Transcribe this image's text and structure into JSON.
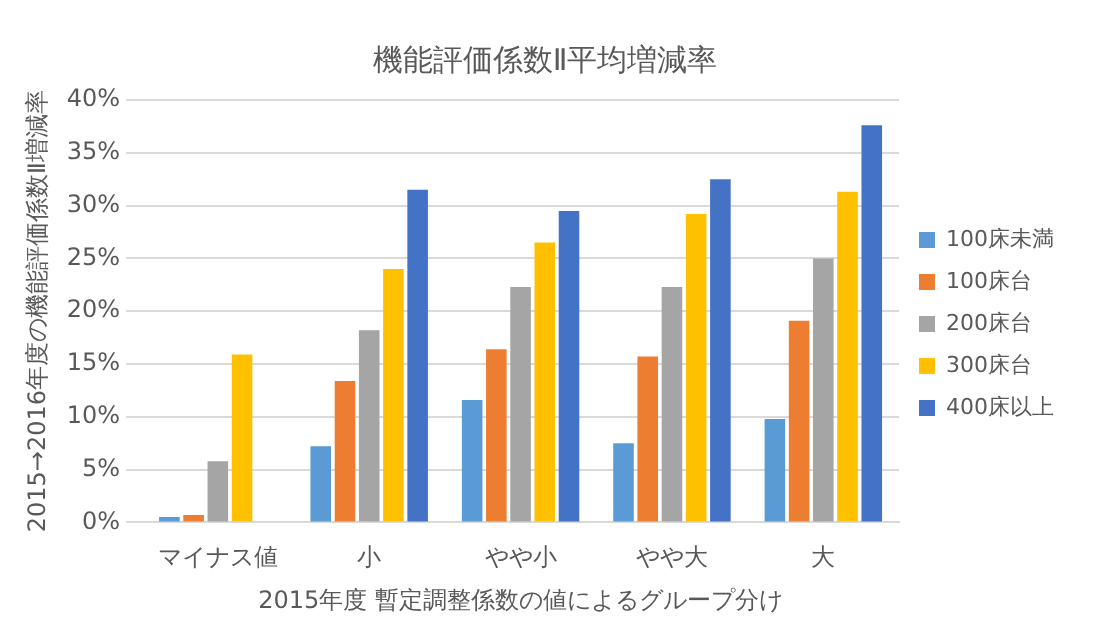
{
  "chart_data": {
    "type": "bar",
    "title": "機能評価係数Ⅱ平均増減率",
    "xlabel": "2015年度 暫定調整係数の値によるグループ分け",
    "ylabel": "2015→2016年度の機能評価係数Ⅱ増減率",
    "categories": [
      "マイナス値",
      "小",
      "やや小",
      "やや大",
      "大"
    ],
    "series": [
      {
        "name": "100床未満",
        "color": "#5b9bd5",
        "values": [
          0.5,
          7.2,
          11.6,
          7.5,
          9.8
        ]
      },
      {
        "name": "100床台",
        "color": "#ed7d31",
        "values": [
          0.7,
          13.4,
          16.4,
          15.7,
          19.1
        ]
      },
      {
        "name": "200床台",
        "color": "#a5a5a5",
        "values": [
          5.8,
          18.2,
          22.3,
          22.3,
          25.0
        ]
      },
      {
        "name": "300床台",
        "color": "#ffc000",
        "values": [
          15.9,
          24.0,
          26.5,
          29.2,
          31.3
        ]
      },
      {
        "name": "400床以上",
        "color": "#4472c4",
        "values": [
          null,
          31.5,
          29.5,
          32.5,
          37.6
        ]
      }
    ],
    "ylim": [
      0,
      40
    ],
    "yticks": [
      {
        "value": 0,
        "label": "0%"
      },
      {
        "value": 5,
        "label": "5%"
      },
      {
        "value": 10,
        "label": "10%"
      },
      {
        "value": 15,
        "label": "15%"
      },
      {
        "value": 20,
        "label": "20%"
      },
      {
        "value": 25,
        "label": "25%"
      },
      {
        "value": 30,
        "label": "30%"
      },
      {
        "value": 35,
        "label": "35%"
      },
      {
        "value": 40,
        "label": "40%"
      }
    ],
    "grid": "y",
    "legend": "right"
  }
}
